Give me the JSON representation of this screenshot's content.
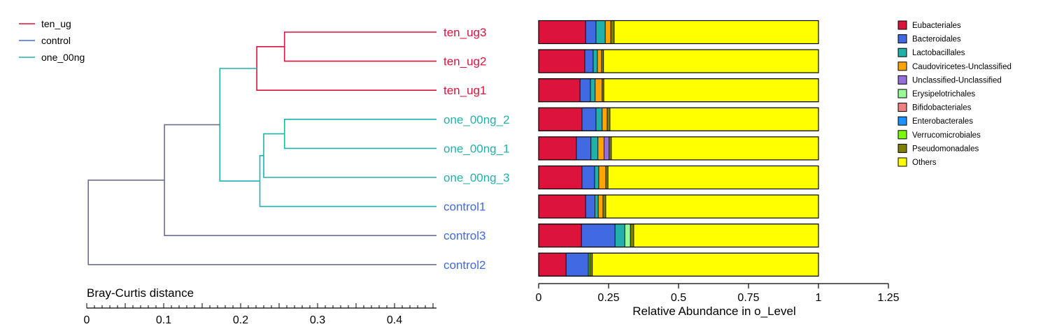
{
  "chart_data": [
    {
      "type": "dendrogram",
      "axis_label": "Bray-Curtis distance",
      "xlim": [
        0,
        0.45
      ],
      "ticks": [
        0,
        0.1,
        0.2,
        0.3,
        0.4
      ],
      "tick_labels": [
        "0",
        "0.1",
        "0.2",
        "0.3",
        "0.4"
      ],
      "leaves": [
        {
          "label": "ten_ug3",
          "group": "ten_ug"
        },
        {
          "label": "ten_ug2",
          "group": "ten_ug"
        },
        {
          "label": "ten_ug1",
          "group": "ten_ug"
        },
        {
          "label": "one_00ng_2",
          "group": "one_00ng"
        },
        {
          "label": "one_00ng_1",
          "group": "one_00ng"
        },
        {
          "label": "one_00ng_3",
          "group": "one_00ng"
        },
        {
          "label": "control1",
          "group": "control"
        },
        {
          "label": "control3",
          "group": "control"
        },
        {
          "label": "control2",
          "group": "control"
        }
      ],
      "merges": [
        {
          "height": 0.257,
          "children": [
            "ten_ug3",
            "ten_ug2"
          ],
          "color": "#DC143C"
        },
        {
          "height": 0.221,
          "children": [
            0,
            "ten_ug1"
          ],
          "color": "#DC143C"
        },
        {
          "height": 0.257,
          "children": [
            "one_00ng_2",
            "one_00ng_1"
          ],
          "color": "#20B2AA"
        },
        {
          "height": 0.23,
          "children": [
            2,
            "one_00ng_3"
          ],
          "color": "#20B2AA"
        },
        {
          "height": 0.225,
          "children": [
            3,
            "control1"
          ],
          "color": "#20B2AA"
        },
        {
          "height": 0.173,
          "children": [
            1,
            4
          ],
          "color": "#20B2AA"
        },
        {
          "height": 0.101,
          "children": [
            5,
            "control3"
          ],
          "color": "#6E6E8E"
        },
        {
          "height": 0.002,
          "children": [
            6,
            "control2"
          ],
          "color": "#6E6E8E"
        }
      ],
      "legend": [
        {
          "name": "ten_ug",
          "color": "#DC143C"
        },
        {
          "name": "control",
          "color": "#4169E1"
        },
        {
          "name": "one_00ng",
          "color": "#20B2AA"
        }
      ]
    },
    {
      "type": "bar",
      "orientation": "horizontal",
      "stacked": true,
      "xlabel": "Relative Abundance in o_Level",
      "xlim": [
        0,
        1.25
      ],
      "ticks": [
        0,
        0.25,
        0.5,
        0.75,
        1,
        1.25
      ],
      "tick_labels": [
        "0",
        "0.25",
        "0.5",
        "0.75",
        "1",
        "1.25"
      ],
      "categories": [
        "ten_ug3",
        "ten_ug2",
        "ten_ug1",
        "one_00ng_2",
        "one_00ng_1",
        "one_00ng_3",
        "control1",
        "control3",
        "control2"
      ],
      "series": [
        {
          "name": "Eubacteriales",
          "color": "#DC143C",
          "values": [
            0.168,
            0.165,
            0.148,
            0.155,
            0.135,
            0.155,
            0.168,
            0.153,
            0.098
          ]
        },
        {
          "name": "Bacteroidales",
          "color": "#4169E1",
          "values": [
            0.037,
            0.03,
            0.037,
            0.05,
            0.052,
            0.045,
            0.033,
            0.12,
            0.08
          ]
        },
        {
          "name": "Lactobacillales",
          "color": "#20B2AA",
          "values": [
            0.033,
            0.015,
            0.017,
            0.022,
            0.025,
            0.015,
            0.012,
            0.035,
            0
          ]
        },
        {
          "name": "Caudoviricetes-Unclassified",
          "color": "#FFA500",
          "values": [
            0.02,
            0.015,
            0.025,
            0.018,
            0.022,
            0.025,
            0.017,
            0,
            0
          ]
        },
        {
          "name": "Unclassified-Unclassified",
          "color": "#9370DB",
          "values": [
            0,
            0,
            0,
            0,
            0.018,
            0,
            0,
            0,
            0
          ]
        },
        {
          "name": "Erysipelotrichales",
          "color": "#98FB98",
          "values": [
            0,
            0,
            0,
            0,
            0,
            0,
            0,
            0.02,
            0
          ]
        },
        {
          "name": "Bifidobacteriales",
          "color": "#F08080",
          "values": [
            0,
            0,
            0,
            0,
            0,
            0,
            0,
            0,
            0
          ]
        },
        {
          "name": "Enterobacterales",
          "color": "#1E90FF",
          "values": [
            0,
            0,
            0,
            0,
            0,
            0,
            0,
            0,
            0
          ]
        },
        {
          "name": "Verrucomicrobiales",
          "color": "#7CFC00",
          "values": [
            0,
            0,
            0,
            0,
            0,
            0,
            0,
            0,
            0.005
          ]
        },
        {
          "name": "Pseudomonadales",
          "color": "#808000",
          "values": [
            0.012,
            0.007,
            0.006,
            0.01,
            0.008,
            0.008,
            0.01,
            0.012,
            0.009
          ]
        },
        {
          "name": "Others",
          "color": "#FFFF00",
          "values": [
            0.73,
            0.768,
            0.767,
            0.745,
            0.74,
            0.752,
            0.76,
            0.66,
            0.808
          ]
        }
      ]
    }
  ]
}
